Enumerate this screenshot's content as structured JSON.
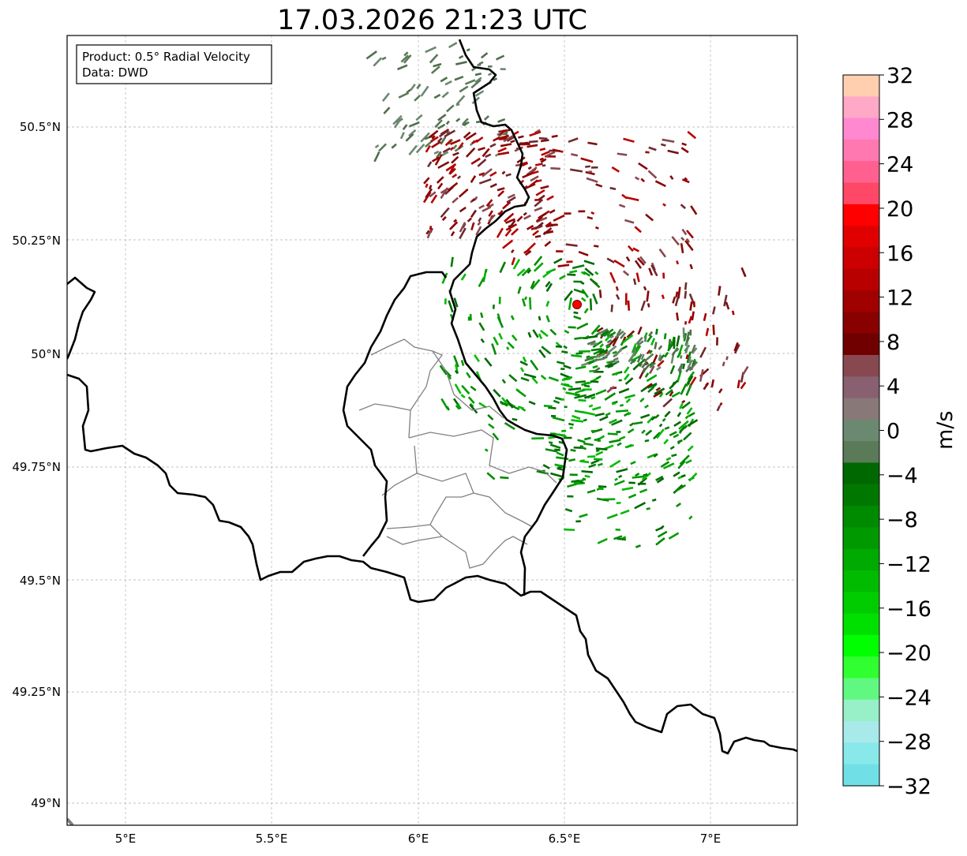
{
  "title": "17.03.2026 21:23 UTC",
  "infobox": {
    "product": "Product: 0.5° Radial Velocity",
    "source": "Data: DWD"
  },
  "axes": {
    "lon_ticks": [
      "5°E",
      "5.5°E",
      "6°E",
      "6.5°E",
      "7°E"
    ],
    "lat_ticks": [
      "50.5°N",
      "50.25°N",
      "50°N",
      "49.75°N",
      "49.5°N",
      "49.25°N",
      "49°N"
    ]
  },
  "radar_site_marker": "red-circle",
  "colorbar": {
    "label": "m/s",
    "ticks": [
      "32",
      "28",
      "24",
      "20",
      "16",
      "12",
      "8",
      "4",
      "0",
      "−4",
      "−8",
      "−12",
      "−16",
      "−20",
      "−24",
      "−28",
      "−32"
    ],
    "colors": [
      "#ffcfb0",
      "#ffa8c8",
      "#ff88d0",
      "#ff78b0",
      "#ff6090",
      "#ff4868",
      "#ff0000",
      "#e00000",
      "#cc0000",
      "#b80000",
      "#a00000",
      "#880000",
      "#700000",
      "#884850",
      "#886070",
      "#887878",
      "#6b8870",
      "#5a7a58",
      "#006800",
      "#007800",
      "#008a00",
      "#009a00",
      "#00aa00",
      "#00bb00",
      "#00cc00",
      "#00e000",
      "#00ff00",
      "#30ff30",
      "#60f880",
      "#98f0c8",
      "#a8eaea",
      "#88e8ea",
      "#70e0e6"
    ],
    "range_min": -32,
    "range_max": 32
  },
  "colors": {
    "borders": "#000000",
    "subdivisions": "#808080",
    "grid": "#b0b0b0",
    "positive_velocity": "#8b0000",
    "negative_velocity": "#007a00",
    "marker": "#ff0000"
  }
}
